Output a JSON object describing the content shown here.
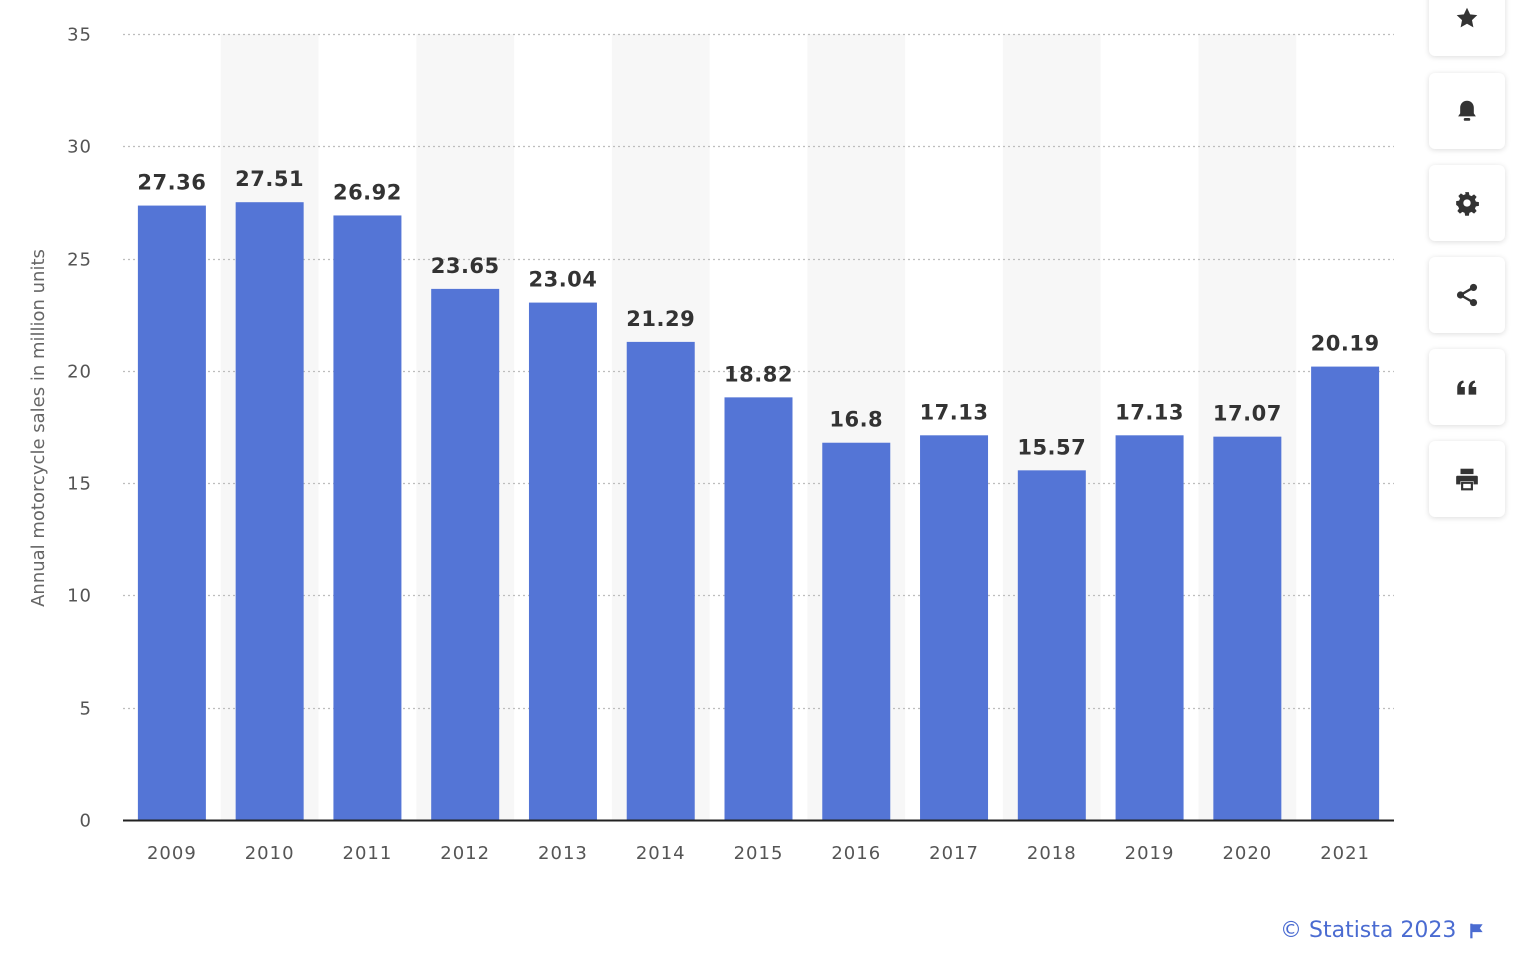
{
  "chart_data": {
    "type": "bar",
    "categories": [
      "2009",
      "2010",
      "2011",
      "2012",
      "2013",
      "2014",
      "2015",
      "2016",
      "2017",
      "2018",
      "2019",
      "2020",
      "2021"
    ],
    "values": [
      27.36,
      27.51,
      26.92,
      23.65,
      23.04,
      21.29,
      18.82,
      16.8,
      17.13,
      15.57,
      17.13,
      17.07,
      20.19
    ],
    "value_labels": [
      "27.36",
      "27.51",
      "26.92",
      "23.65",
      "23.04",
      "21.29",
      "18.82",
      "16.8",
      "17.13",
      "15.57",
      "17.13",
      "17.07",
      "20.19"
    ],
    "yticks": [
      0,
      5,
      10,
      15,
      20,
      25,
      30,
      35
    ],
    "ylim": [
      0,
      35
    ],
    "ylabel": "Annual motorcycle sales in million units",
    "xlabel": "",
    "title": "",
    "grid": true,
    "bar_color": "#5475d6",
    "band_color": "#f7f7f7"
  },
  "toolbar": {
    "buttons": [
      {
        "name": "favorite-button",
        "icon": "star-icon"
      },
      {
        "name": "notification-button",
        "icon": "bell-icon"
      },
      {
        "name": "settings-button",
        "icon": "gear-icon"
      },
      {
        "name": "share-button",
        "icon": "share-icon"
      },
      {
        "name": "cite-button",
        "icon": "quote-icon"
      },
      {
        "name": "print-button",
        "icon": "printer-icon"
      }
    ],
    "icon_color": "#333333"
  },
  "credit": {
    "text": "© Statista 2023",
    "color": "#4a6bd1"
  }
}
